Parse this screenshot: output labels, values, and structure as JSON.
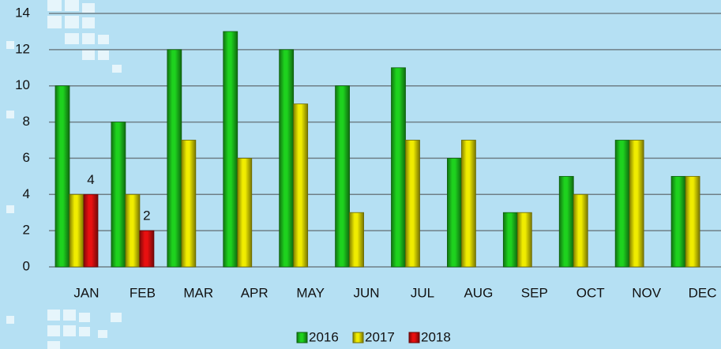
{
  "chart_data": {
    "type": "bar",
    "categories": [
      "JAN",
      "FEB",
      "MAR",
      "APR",
      "MAY",
      "JUN",
      "JUL",
      "AUG",
      "SEP",
      "OCT",
      "NOV",
      "DEC"
    ],
    "series": [
      {
        "name": "2016",
        "color": "#1ed21e",
        "values": [
          10,
          8,
          12,
          13,
          12,
          10,
          11,
          6,
          3,
          5,
          7,
          5
        ]
      },
      {
        "name": "2017",
        "color": "#f0ec00",
        "values": [
          4,
          4,
          7,
          6,
          9,
          3,
          7,
          7,
          3,
          4,
          7,
          5
        ]
      },
      {
        "name": "2018",
        "color": "#e81010",
        "values": [
          4,
          2,
          null,
          null,
          null,
          null,
          null,
          null,
          null,
          null,
          null,
          null
        ],
        "data_labels": true
      }
    ],
    "ylim": [
      0,
      14
    ],
    "yticks": [
      0,
      2,
      4,
      6,
      8,
      10,
      12,
      14
    ],
    "grid": true,
    "legend": "bottom"
  }
}
